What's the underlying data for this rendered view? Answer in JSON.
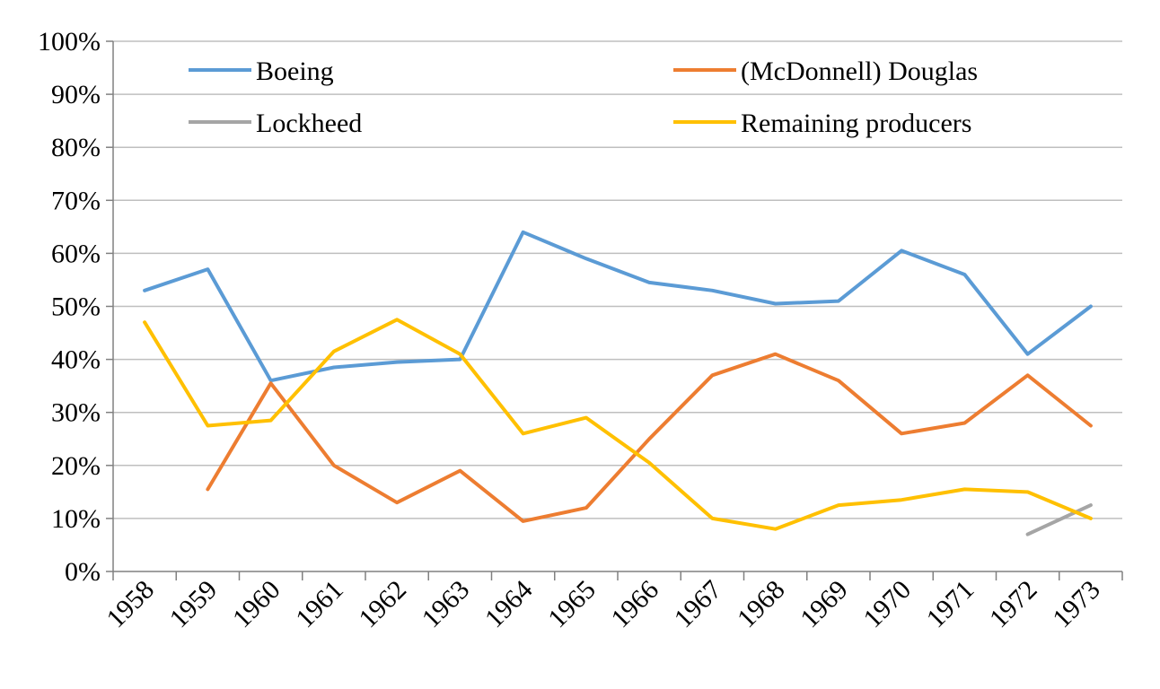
{
  "chart_data": {
    "type": "line",
    "categories": [
      "1958",
      "1959",
      "1960",
      "1961",
      "1962",
      "1963",
      "1964",
      "1965",
      "1966",
      "1967",
      "1968",
      "1969",
      "1970",
      "1971",
      "1972",
      "1973"
    ],
    "ylim": [
      0,
      100
    ],
    "yticks": [
      "0%",
      "10%",
      "20%",
      "30%",
      "40%",
      "50%",
      "60%",
      "70%",
      "80%",
      "90%",
      "100%"
    ],
    "grid": true,
    "legend_position": "top",
    "series": [
      {
        "name": "Boeing",
        "color": "#5b9bd5",
        "values": [
          53,
          57,
          36,
          38.5,
          39.5,
          40,
          64,
          59,
          54.5,
          53,
          50.5,
          51,
          60.5,
          56,
          41,
          50
        ]
      },
      {
        "name": "(McDonnell) Douglas",
        "color": "#ed7d31",
        "values": [
          null,
          15.5,
          35.5,
          20,
          13,
          19,
          9.5,
          12,
          25,
          37,
          41,
          36,
          26,
          28,
          37,
          27.5
        ]
      },
      {
        "name": "Lockheed",
        "color": "#a5a5a5",
        "values": [
          null,
          null,
          null,
          null,
          null,
          null,
          null,
          null,
          null,
          null,
          null,
          null,
          null,
          null,
          7,
          12.5
        ]
      },
      {
        "name": "Remaining producers",
        "color": "#ffc000",
        "values": [
          47,
          27.5,
          28.5,
          41.5,
          47.5,
          41,
          26,
          29,
          20.5,
          10,
          8,
          12.5,
          13.5,
          15.5,
          15,
          10
        ]
      }
    ]
  }
}
